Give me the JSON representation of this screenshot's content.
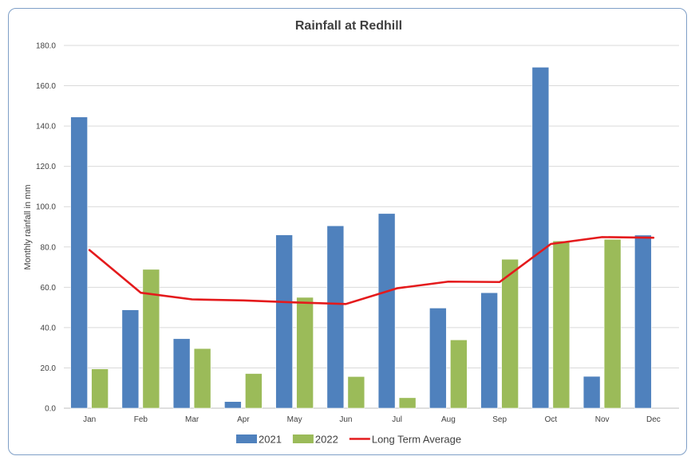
{
  "chart_data": {
    "type": "bar",
    "title": "Rainfall at Redhill",
    "xlabel": "",
    "ylabel": "Monthly rainfall in mm",
    "ylim": [
      0,
      180
    ],
    "yticks": [
      "0.0",
      "20.0",
      "40.0",
      "60.0",
      "80.0",
      "100.0",
      "120.0",
      "140.0",
      "160.0",
      "180.0"
    ],
    "grid": true,
    "legend_position": "bottom",
    "categories": [
      "Jan",
      "Feb",
      "Mar",
      "Apr",
      "May",
      "Jun",
      "Jul",
      "Aug",
      "Sep",
      "Oct",
      "Nov",
      "Dec"
    ],
    "series": [
      {
        "name": "2021",
        "kind": "bar",
        "color": "#4f81bd",
        "values": [
          144.5,
          48.8,
          34.5,
          3.3,
          86.0,
          90.5,
          96.6,
          49.7,
          57.3,
          169.2,
          15.8,
          85.9
        ]
      },
      {
        "name": "2022",
        "kind": "bar",
        "color": "#9bbb59",
        "values": [
          19.5,
          68.9,
          29.6,
          17.2,
          55.0,
          15.7,
          5.2,
          33.9,
          73.9,
          83.0,
          83.8,
          null
        ]
      },
      {
        "name": "Long Term Average",
        "kind": "line",
        "color": "#e41a1c",
        "values": [
          78.5,
          57.3,
          54.0,
          53.5,
          52.5,
          51.7,
          59.5,
          62.8,
          62.6,
          81.5,
          84.9,
          84.6
        ]
      }
    ]
  }
}
